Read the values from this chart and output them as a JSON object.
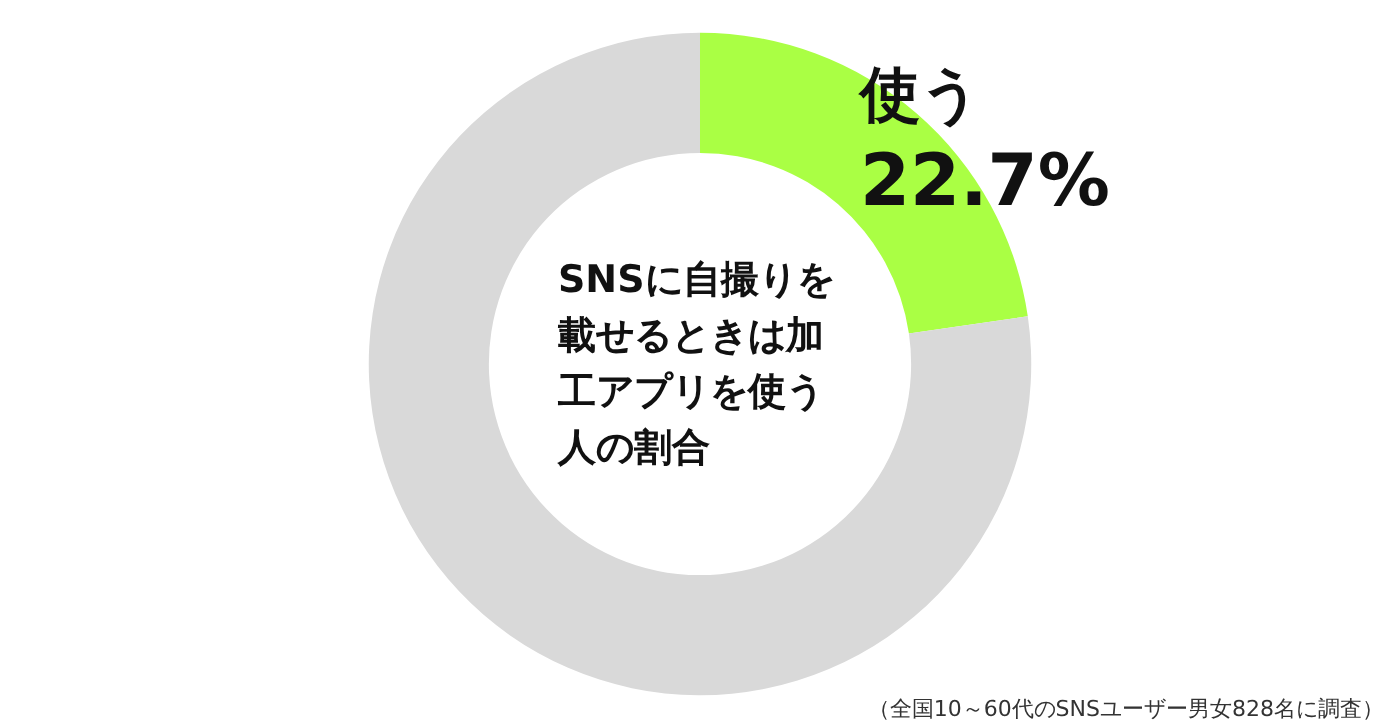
{
  "chart_data": {
    "type": "donut",
    "title": "SNSに自撮りを載せるときは加工アプリを使う人の割合",
    "categories": [
      "使う",
      null
    ],
    "values": [
      22.7,
      77.3
    ],
    "colors": [
      "#aaff44",
      "#d9d9d9"
    ],
    "value_labels": [
      "22.7%",
      null
    ],
    "legend": false,
    "annotations": [
      "（全国10～60代のSNSユーザー男女828名に調査）"
    ]
  }
}
